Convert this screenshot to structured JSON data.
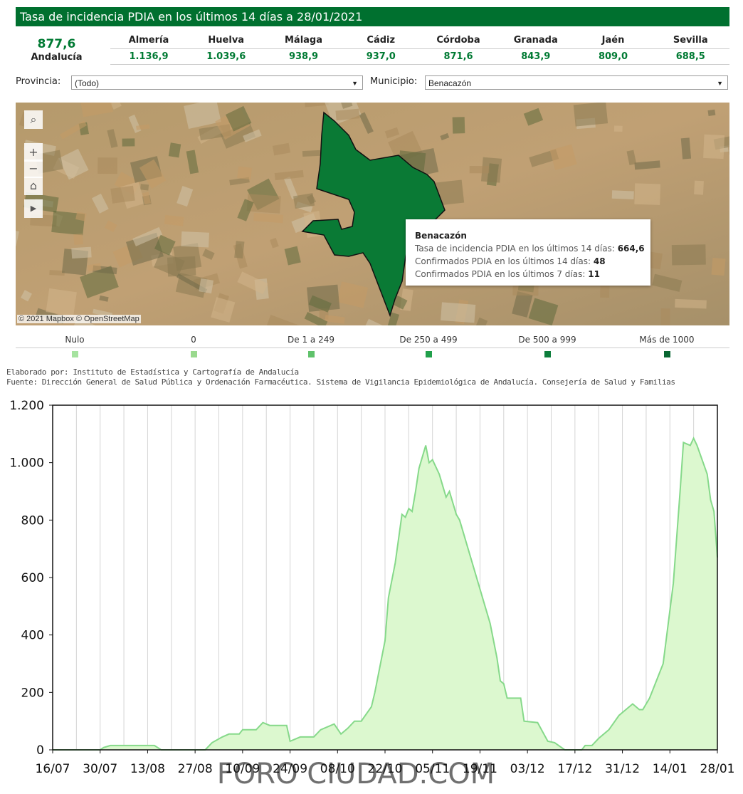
{
  "header": {
    "title": "Tasa de incidencia PDIA en los últimos 14 días a 28/01/2021"
  },
  "summary": {
    "total": {
      "value": "877,6",
      "label": "Andalucía"
    },
    "provinces": [
      {
        "name": "Almería",
        "value": "1.136,9"
      },
      {
        "name": "Huelva",
        "value": "1.039,6"
      },
      {
        "name": "Málaga",
        "value": "938,9"
      },
      {
        "name": "Cádiz",
        "value": "937,0"
      },
      {
        "name": "Córdoba",
        "value": "871,6"
      },
      {
        "name": "Granada",
        "value": "843,9"
      },
      {
        "name": "Jaén",
        "value": "809,0"
      },
      {
        "name": "Sevilla",
        "value": "688,5"
      }
    ]
  },
  "filters": [
    {
      "label": "Provincia:",
      "value": "(Todo)"
    },
    {
      "label": "Municipio:",
      "value": "Benacazón"
    }
  ],
  "map": {
    "attribution": "© 2021 Mapbox © OpenStreetMap",
    "tooltip": {
      "title": "Benacazón",
      "rows": [
        {
          "label": "Tasa de incidencia PDIA en los últimos 14 días:",
          "value": "664,6"
        },
        {
          "label": "Confirmados PDIA en los últimos 14 días:",
          "value": "48"
        },
        {
          "label": "Confirmados PDIA en los últimos 7 días:",
          "value": "11"
        }
      ]
    }
  },
  "legend": [
    {
      "label": "Nulo",
      "color": "#a6e3a0"
    },
    {
      "label": "0",
      "color": "#9ad98e"
    },
    {
      "label": "De 1 a 249",
      "color": "#5fc26b"
    },
    {
      "label": "De 250 a 499",
      "color": "#21a04b"
    },
    {
      "label": "De 500 a 999",
      "color": "#0c7d3b"
    },
    {
      "label": "Más de 1000",
      "color": "#086631"
    }
  ],
  "sources": [
    "Elaborado por: Instituto de Estadística y Cartografía de Andalucía",
    "Fuente: Dirección General de Salud Pública y Ordenación Farmacéutica. Sistema de Vigilancia Epidemiológica de Andalucía. Consejería de Salud y Familias"
  ],
  "watermark": "FORO CIUDAD.COM",
  "chart_data": {
    "type": "area",
    "color": "#86d98a",
    "fill": "#dcf8cf",
    "x": [
      0,
      14,
      15,
      17,
      30,
      32,
      45,
      47,
      50,
      52,
      55,
      56,
      60,
      62,
      64,
      69,
      70,
      73,
      77,
      79,
      83,
      85,
      87,
      89,
      91,
      94,
      95,
      98,
      99,
      101,
      103,
      104,
      105,
      106,
      107,
      108,
      110,
      111,
      112,
      114,
      116,
      117,
      119,
      120,
      123,
      126,
      129,
      131,
      132,
      133,
      134,
      138,
      139,
      143,
      146,
      148,
      151,
      156,
      157,
      159,
      161,
      164,
      167,
      171,
      173,
      174,
      176,
      180,
      183,
      185,
      186,
      188,
      189,
      190,
      193,
      194,
      195,
      196
    ],
    "values": [
      0,
      0,
      8,
      15,
      15,
      0,
      0,
      25,
      45,
      55,
      55,
      70,
      70,
      95,
      85,
      85,
      30,
      45,
      45,
      70,
      90,
      55,
      75,
      100,
      100,
      150,
      200,
      380,
      530,
      650,
      820,
      810,
      840,
      830,
      900,
      980,
      1060,
      1000,
      1010,
      960,
      880,
      900,
      820,
      800,
      680,
      560,
      440,
      320,
      240,
      230,
      180,
      180,
      100,
      95,
      30,
      25,
      0,
      0,
      15,
      15,
      40,
      70,
      120,
      160,
      140,
      140,
      180,
      300,
      580,
      900,
      1070,
      1060,
      1085,
      1060,
      960,
      870,
      830,
      670
    ],
    "xlim": [
      0,
      196
    ],
    "xticks": [
      {
        "value": 0,
        "label": "16/07"
      },
      {
        "value": 14,
        "label": "30/07"
      },
      {
        "value": 28,
        "label": "13/08"
      },
      {
        "value": 42,
        "label": "27/08"
      },
      {
        "value": 56,
        "label": "10/09"
      },
      {
        "value": 70,
        "label": "24/09"
      },
      {
        "value": 84,
        "label": "08/10"
      },
      {
        "value": 98,
        "label": "22/10"
      },
      {
        "value": 112,
        "label": "05/11"
      },
      {
        "value": 126,
        "label": "19/11"
      },
      {
        "value": 140,
        "label": "03/12"
      },
      {
        "value": 154,
        "label": "17/12"
      },
      {
        "value": 168,
        "label": "31/12"
      },
      {
        "value": 182,
        "label": "14/01"
      },
      {
        "value": 196,
        "label": "28/01"
      }
    ],
    "xgrid_minor": [
      7,
      21,
      35,
      49,
      63,
      77,
      91,
      105,
      119,
      133,
      147,
      161,
      175,
      189
    ],
    "ylim": [
      0,
      1200
    ],
    "yticks": [
      0,
      200,
      400,
      600,
      800,
      {
        "value": 1000,
        "label": "1.000"
      },
      {
        "value": 1200,
        "label": "1.200"
      }
    ],
    "grid": true
  }
}
